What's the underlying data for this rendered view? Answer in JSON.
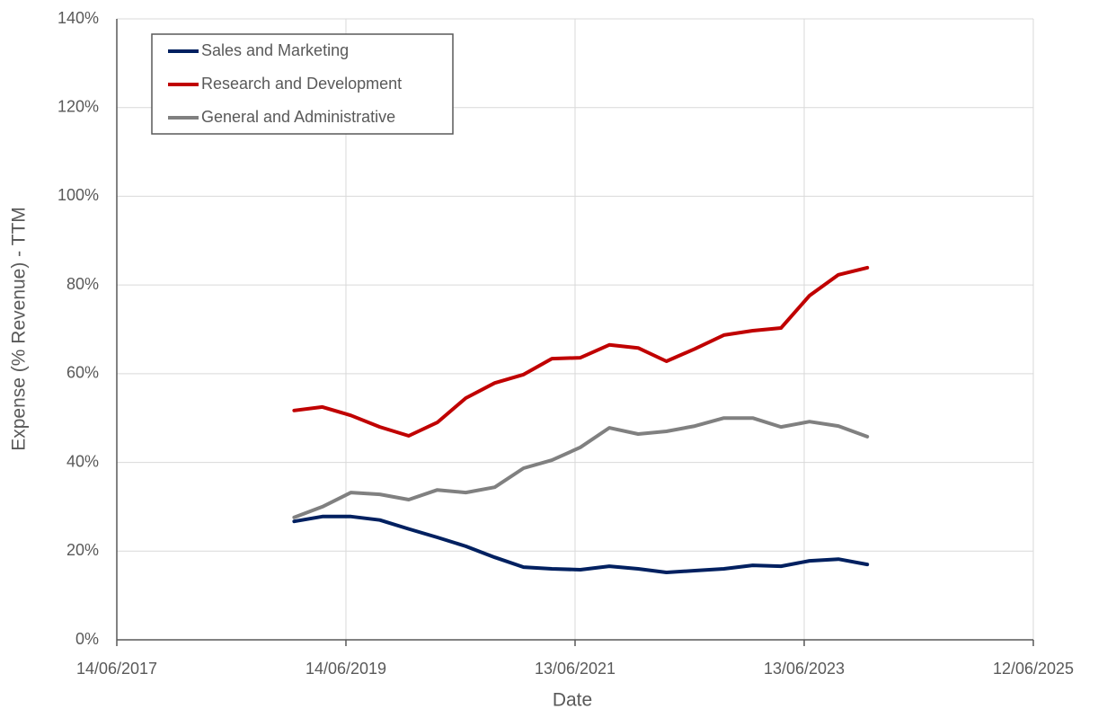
{
  "chart_data": {
    "type": "line",
    "x_label": "Date",
    "y_label": "Expense (% Revenue) - TTM",
    "x": [
      "2018-12-31",
      "2019-03-31",
      "2019-06-30",
      "2019-09-30",
      "2019-12-31",
      "2020-03-31",
      "2020-06-30",
      "2020-09-30",
      "2020-12-31",
      "2021-03-31",
      "2021-06-30",
      "2021-09-30",
      "2021-12-31",
      "2022-03-31",
      "2022-06-30",
      "2022-09-30",
      "2022-12-31",
      "2023-03-31",
      "2023-06-30",
      "2023-09-30",
      "2023-12-31"
    ],
    "series": [
      {
        "name": "Sales and Marketing",
        "color": "#002060",
        "values": [
          26.7,
          27.8,
          27.8,
          27.0,
          25.0,
          23.1,
          21.1,
          18.6,
          16.4,
          16.0,
          15.8,
          16.6,
          16.0,
          15.2,
          15.6,
          16.0,
          16.8,
          16.6,
          17.8,
          18.2,
          17.0
        ]
      },
      {
        "name": "Research and Development",
        "color": "#c00000",
        "values": [
          51.7,
          52.5,
          50.6,
          48.0,
          46.0,
          49.0,
          54.5,
          57.9,
          59.8,
          63.4,
          63.6,
          66.5,
          65.8,
          62.8,
          65.6,
          68.7,
          69.7,
          70.3,
          77.6,
          82.3,
          83.9
        ]
      },
      {
        "name": "General and Administrative",
        "color": "#808080",
        "values": [
          27.6,
          30.0,
          33.2,
          32.8,
          31.6,
          33.8,
          33.2,
          34.4,
          38.7,
          40.5,
          43.4,
          47.8,
          46.4,
          47.0,
          48.2,
          50.0,
          50.0,
          48.0,
          49.2,
          48.2,
          45.8
        ]
      }
    ],
    "xlim": [
      "2017-06-14",
      "2025-06-12"
    ],
    "xticks": [
      {
        "value": "2017-06-14",
        "label": "14/06/2017"
      },
      {
        "value": "2019-06-14",
        "label": "14/06/2019"
      },
      {
        "value": "2021-06-13",
        "label": "13/06/2021"
      },
      {
        "value": "2023-06-13",
        "label": "13/06/2023"
      },
      {
        "value": "2025-06-12",
        "label": "12/06/2025"
      }
    ],
    "ylim": [
      0,
      140
    ],
    "yticks": [
      {
        "value": 0,
        "label": "0%"
      },
      {
        "value": 20,
        "label": "20%"
      },
      {
        "value": 40,
        "label": "40%"
      },
      {
        "value": 60,
        "label": "60%"
      },
      {
        "value": 80,
        "label": "80%"
      },
      {
        "value": 100,
        "label": "100%"
      },
      {
        "value": 120,
        "label": "120%"
      },
      {
        "value": 140,
        "label": "140%"
      }
    ],
    "grid": true,
    "legend": "upper left"
  }
}
